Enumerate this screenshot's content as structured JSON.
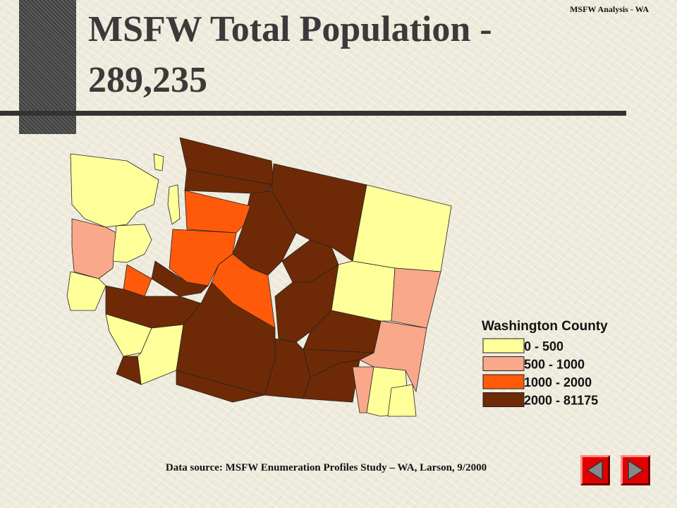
{
  "header_tag": "MSFW Analysis - WA",
  "title": "MSFW Total Population - 289,235",
  "legend": {
    "title": "Washington County",
    "items": [
      {
        "label": "0 - 500",
        "color": "#ffff99"
      },
      {
        "label": "500 - 1000",
        "color": "#f9a88a"
      },
      {
        "label": "1000 - 2000",
        "color": "#ff5a0a"
      },
      {
        "label": "2000 - 81175",
        "color": "#6e2a06"
      }
    ]
  },
  "source": "Data source: MSFW Enumeration Profiles Study – WA, Larson, 9/2000"
}
